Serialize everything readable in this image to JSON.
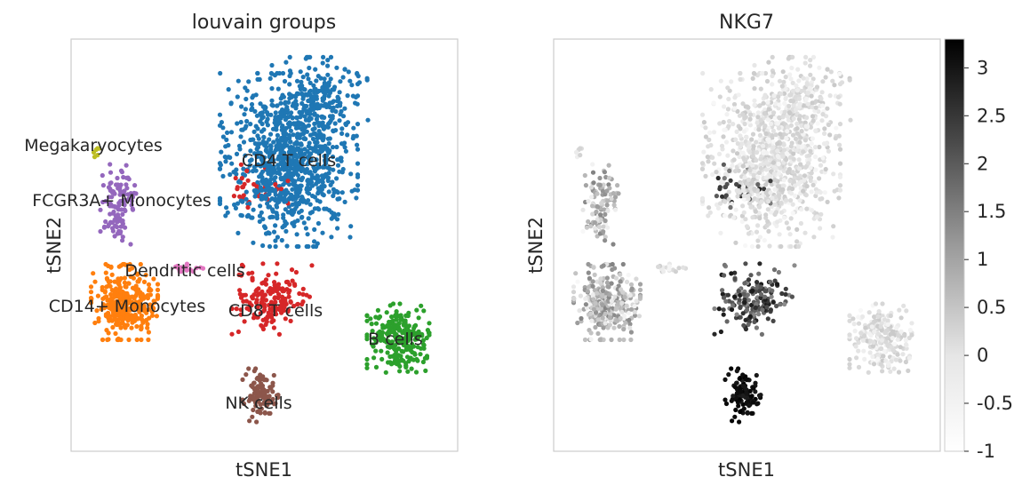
{
  "chart_data": [
    {
      "type": "scatter",
      "title": "louvain groups",
      "xlabel": "tSNE1",
      "ylabel": "tSNE2",
      "grid": false,
      "legend": "on data",
      "groups": [
        {
          "name": "CD4 T cells",
          "color": "#1f77b4"
        },
        {
          "name": "CD14+ Monocytes",
          "color": "#ff7f0e"
        },
        {
          "name": "B cells",
          "color": "#2ca02c"
        },
        {
          "name": "CD8 T cells",
          "color": "#d62728"
        },
        {
          "name": "NK cells",
          "color": "#8c564b"
        },
        {
          "name": "FCGR3A+ Monocytes",
          "color": "#9467bd"
        },
        {
          "name": "Dendritic cells",
          "color": "#e377c2"
        },
        {
          "name": "Megakaryocytes",
          "color": "#bcbd22"
        }
      ]
    },
    {
      "type": "scatter",
      "title": "NKG7",
      "xlabel": "tSNE1",
      "ylabel": "tSNE2",
      "grid": false,
      "colorscale": "greys",
      "colorbar": {
        "position": "right",
        "range": [
          -1,
          3.3
        ],
        "ticks": [
          "3",
          "2.5",
          "2",
          "1.5",
          "1",
          "0.5",
          "0",
          "-0.5",
          "-1"
        ]
      }
    }
  ]
}
